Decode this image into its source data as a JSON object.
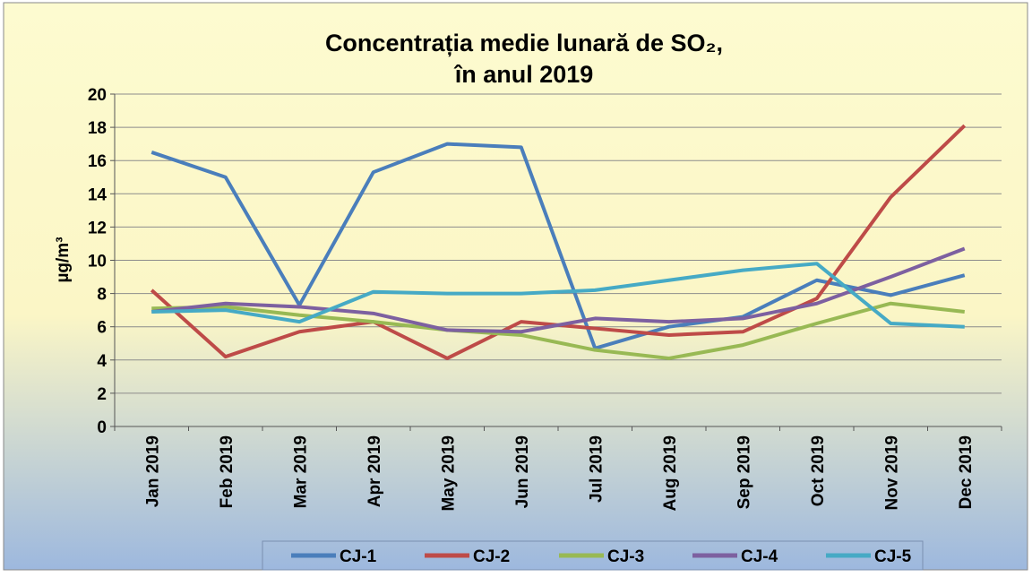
{
  "chart_data": {
    "type": "line",
    "title": [
      "Concentrația medie lunară de SO₂,",
      "în anul 2019"
    ],
    "y_label": "µg/m³",
    "categories": [
      "Jan 2019",
      "Feb 2019",
      "Mar 2019",
      "Apr 2019",
      "May 2019",
      "Jun 2019",
      "Jul 2019",
      "Aug 2019",
      "Sep 2019",
      "Oct 2019",
      "Nov 2019",
      "Dec 2019"
    ],
    "series": [
      {
        "name": "CJ-1",
        "color": "#4a7ebb",
        "values": [
          16.5,
          15.0,
          7.3,
          15.3,
          17.0,
          16.8,
          4.7,
          6.0,
          6.6,
          8.8,
          7.9,
          9.1
        ]
      },
      {
        "name": "CJ-2",
        "color": "#be4b48",
        "values": [
          8.2,
          4.2,
          5.7,
          6.3,
          4.1,
          6.3,
          5.9,
          5.5,
          5.7,
          7.7,
          13.8,
          18.1
        ]
      },
      {
        "name": "CJ-3",
        "color": "#98b954",
        "values": [
          7.1,
          7.2,
          6.7,
          6.3,
          5.8,
          5.5,
          4.6,
          4.1,
          4.9,
          6.2,
          7.4,
          6.9
        ]
      },
      {
        "name": "CJ-4",
        "color": "#7d60a0",
        "values": [
          6.9,
          7.4,
          7.2,
          6.8,
          5.8,
          5.7,
          6.5,
          6.3,
          6.5,
          7.4,
          9.0,
          10.7
        ]
      },
      {
        "name": "CJ-5",
        "color": "#46aac5",
        "values": [
          6.9,
          7.0,
          6.3,
          8.1,
          8.0,
          8.0,
          8.2,
          8.8,
          9.4,
          9.8,
          6.2,
          6.0
        ]
      }
    ],
    "ylim": [
      0,
      20
    ],
    "yticks": [
      0,
      2,
      4,
      6,
      8,
      10,
      12,
      14,
      16,
      18,
      20
    ],
    "grid": true,
    "legend": "bottom"
  }
}
